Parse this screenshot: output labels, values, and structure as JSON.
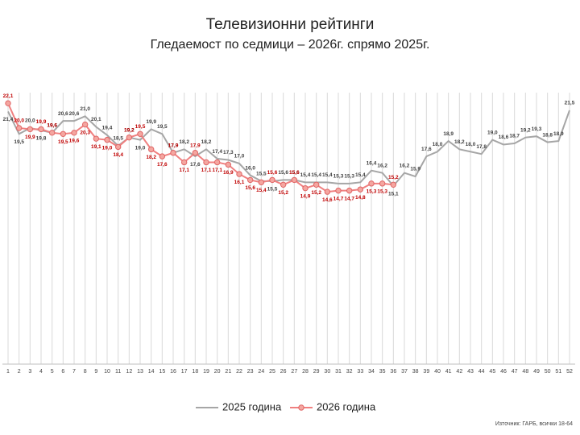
{
  "chart_data": {
    "type": "line",
    "title": "Телевизионни рейтинги",
    "subtitle": "Гледаемост по седмици – 2026г. спрямо 2025г.",
    "source": "Източник: ГАРБ, всички 18-64",
    "categories": [
      "1",
      "2",
      "3",
      "4",
      "5",
      "6",
      "7",
      "8",
      "9",
      "10",
      "11",
      "12",
      "13",
      "14",
      "15",
      "16",
      "17",
      "18",
      "19",
      "20",
      "21",
      "22",
      "23",
      "24",
      "25",
      "26",
      "27",
      "28",
      "29",
      "30",
      "31",
      "32",
      "33",
      "34",
      "35",
      "36",
      "37",
      "38",
      "39",
      "40",
      "41",
      "42",
      "43",
      "44",
      "45",
      "46",
      "47",
      "48",
      "49",
      "50",
      "51",
      "52"
    ],
    "ylim": [
      0,
      23
    ],
    "grid": true,
    "legend": "bottom",
    "series": [
      {
        "name": "2025 година",
        "color": "#a6a6a6",
        "label_color": "#404040",
        "marker": false,
        "values": [
          21.4,
          19.5,
          20.0,
          19.8,
          19.6,
          20.6,
          20.6,
          21.0,
          20.1,
          19.4,
          18.5,
          19.2,
          19.0,
          19.9,
          19.5,
          17.9,
          18.2,
          17.6,
          18.2,
          17.4,
          17.3,
          17.0,
          16.0,
          15.5,
          15.5,
          15.6,
          15.6,
          15.4,
          15.4,
          15.4,
          15.3,
          15.3,
          15.4,
          16.4,
          16.2,
          15.1,
          16.2,
          15.9,
          17.6,
          18.0,
          18.9,
          18.2,
          18.0,
          17.8,
          19.0,
          18.6,
          18.7,
          19.2,
          19.3,
          18.8,
          18.9,
          21.5
        ],
        "value_labels": [
          "21,4",
          "19,5",
          "20,0",
          "19,8",
          "19,6",
          "20,6",
          "20,6",
          "21,0",
          "20,1",
          "19,4",
          "18,5",
          "19,2",
          "19,0",
          "19,9",
          "19,5",
          "17,9",
          "18,2",
          "17,6",
          "18,2",
          "17,4",
          "17,3",
          "17,0",
          "16,0",
          "15,5",
          "15,5",
          "15,6",
          "15,6",
          "15,4",
          "15,4",
          "15,4",
          "15,3",
          "15,3",
          "15,4",
          "16,4",
          "16,2",
          "15,1",
          "16,2",
          "15,9",
          "17,6",
          "18,0",
          "18,9",
          "18,2",
          "18,0",
          "17,8",
          "19,0",
          "18,6",
          "18,7",
          "19,2",
          "19,3",
          "18,8",
          "18,9",
          "21,5"
        ]
      },
      {
        "name": "2026 година",
        "color": "#f08080",
        "label_color": "#c00000",
        "marker": true,
        "values": [
          22.1,
          20.0,
          19.9,
          19.9,
          19.6,
          19.5,
          19.6,
          20.3,
          19.1,
          19.0,
          18.4,
          19.2,
          19.5,
          18.2,
          17.6,
          17.9,
          17.1,
          17.9,
          17.1,
          17.1,
          16.9,
          16.1,
          15.6,
          15.4,
          15.6,
          15.2,
          15.6,
          14.9,
          15.2,
          14.6,
          14.7,
          14.7,
          14.8,
          15.3,
          15.3,
          15.2,
          null,
          null,
          null,
          null,
          null,
          null,
          null,
          null,
          null,
          null,
          null,
          null,
          null,
          null,
          null,
          null
        ],
        "value_labels": [
          "22,1",
          "20,0",
          "19,9",
          "19,9",
          "19,6",
          "19,5",
          "19,6",
          "20,3",
          "19,1",
          "19,0",
          "18,4",
          "19,2",
          "19,5",
          "18,2",
          "17,6",
          "17,9",
          "17,1",
          "17,9",
          "17,1",
          "17,1",
          "16,9",
          "16,1",
          "15,6",
          "15,4",
          "15,6",
          "15,2",
          "15,6",
          "14,9",
          "15,2",
          "14,6",
          "14,7",
          "14,7",
          "14,8",
          "15,3",
          "15,3",
          "15,2",
          null,
          null,
          null,
          null,
          null,
          null,
          null,
          null,
          null,
          null,
          null,
          null,
          null,
          null,
          null,
          null
        ]
      }
    ]
  }
}
